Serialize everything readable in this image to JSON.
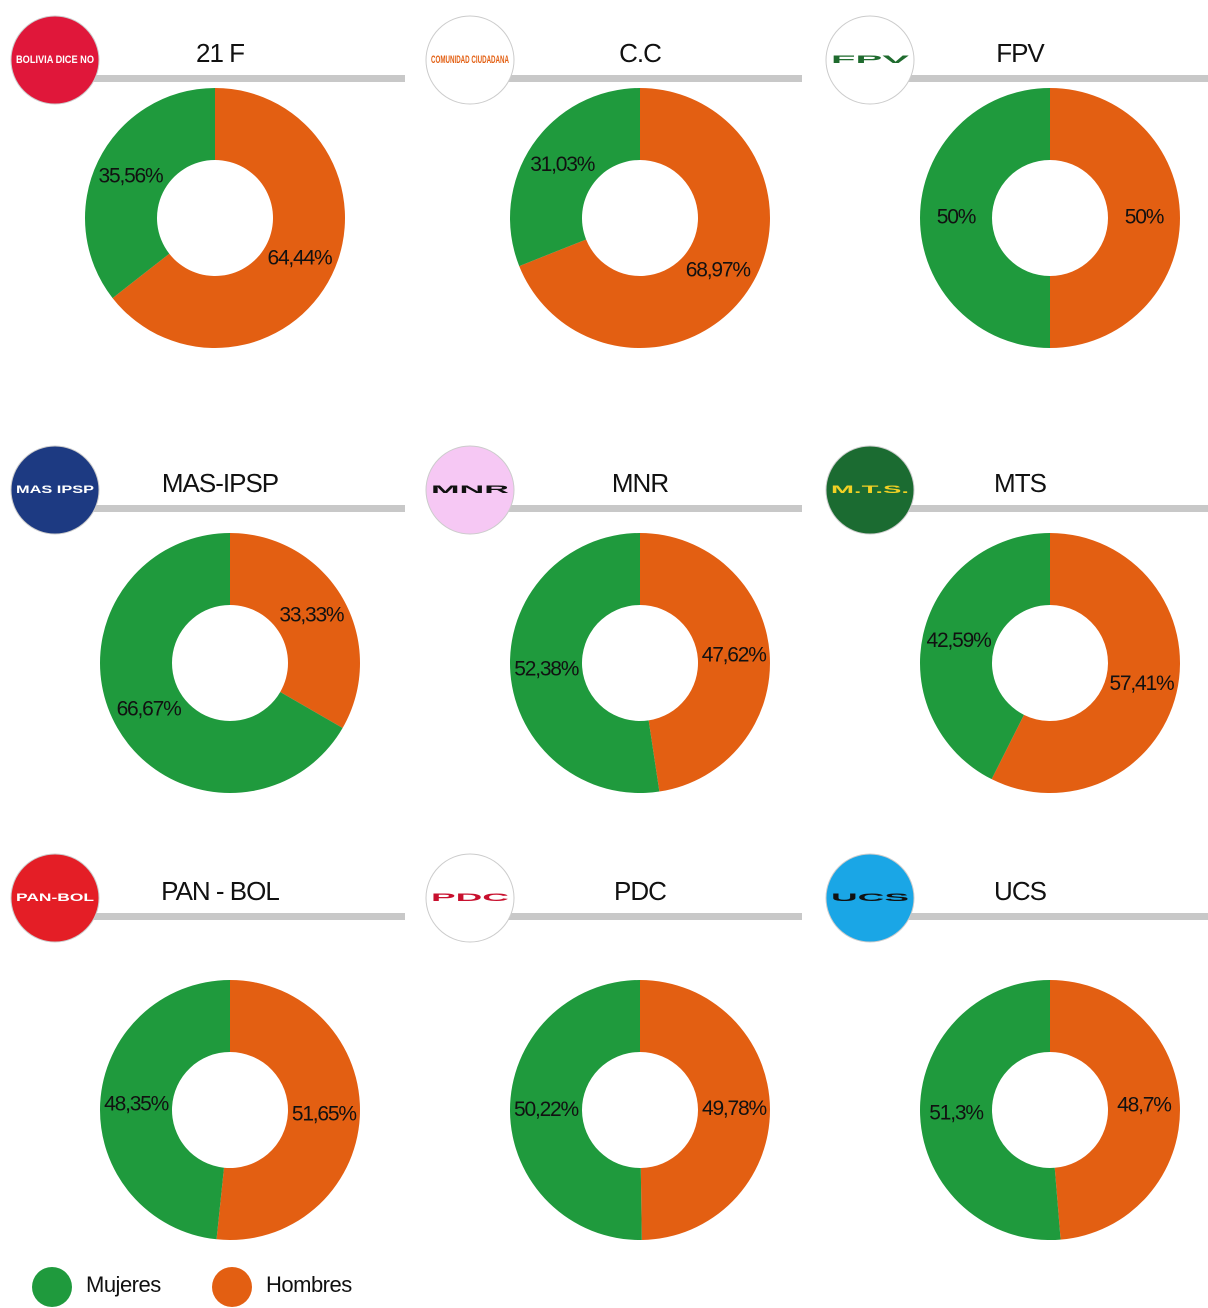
{
  "chart_data": [
    {
      "type": "donut",
      "title": "21 F",
      "logo_text": "BOLIVIA DICE NO",
      "values": [
        35.56,
        64.44
      ],
      "value_labels": [
        "35,56%",
        "64,44%"
      ]
    },
    {
      "type": "donut",
      "title": "C.C",
      "logo_text": "COMUNIDAD CIUDADANA",
      "values": [
        31.03,
        68.97
      ],
      "value_labels": [
        "31,03%",
        "68,97%"
      ]
    },
    {
      "type": "donut",
      "title": "FPV",
      "logo_text": "FPV",
      "values": [
        50,
        50
      ],
      "value_labels": [
        "50%",
        "50%"
      ]
    },
    {
      "type": "donut",
      "title": "MAS-IPSP",
      "logo_text": "MAS IPSP",
      "values": [
        66.67,
        33.33
      ],
      "value_labels": [
        "66,67%",
        "33,33%"
      ]
    },
    {
      "type": "donut",
      "title": "MNR",
      "logo_text": "MNR",
      "values": [
        52.38,
        47.62
      ],
      "value_labels": [
        "52,38%",
        "47,62%"
      ]
    },
    {
      "type": "donut",
      "title": "MTS",
      "logo_text": "M.T.S.",
      "values": [
        42.59,
        57.41
      ],
      "value_labels": [
        "42,59%",
        "57,41%"
      ]
    },
    {
      "type": "donut",
      "title": "PAN - BOL",
      "logo_text": "PAN-BOL",
      "values": [
        48.35,
        51.65
      ],
      "value_labels": [
        "48,35%",
        "51,65%"
      ]
    },
    {
      "type": "donut",
      "title": "PDC",
      "logo_text": "PDC",
      "values": [
        50.22,
        49.78
      ],
      "value_labels": [
        "50,22%",
        "49,78%"
      ]
    },
    {
      "type": "donut",
      "title": "UCS",
      "logo_text": "UCS",
      "values": [
        51.3,
        48.7
      ],
      "value_labels": [
        "51,3%",
        "48,7%"
      ]
    }
  ],
  "legend": [
    {
      "name": "Mujeres",
      "color": "#1f9a3d"
    },
    {
      "name": "Hombres",
      "color": "#e35f12"
    }
  ]
}
